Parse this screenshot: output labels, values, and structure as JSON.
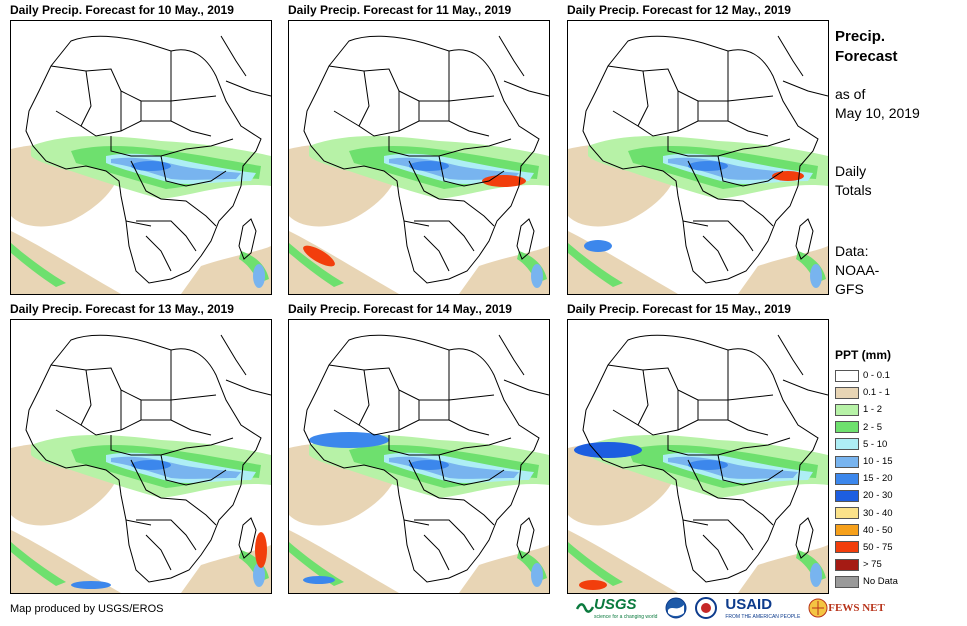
{
  "panels": [
    {
      "title": "Daily Precip. Forecast for 10 May., 2019"
    },
    {
      "title": "Daily Precip. Forecast for 11 May., 2019"
    },
    {
      "title": "Daily Precip. Forecast for 12 May., 2019"
    },
    {
      "title": "Daily Precip. Forecast for 13 May., 2019"
    },
    {
      "title": "Daily Precip. Forecast for 14 May., 2019"
    },
    {
      "title": "Daily Precip. Forecast for 15 May., 2019"
    }
  ],
  "sidebar": {
    "title_line1": "Precip.",
    "title_line2": "Forecast",
    "asof_line1": "as of",
    "asof_line2": "May 10, 2019",
    "totals_line1": "Daily",
    "totals_line2": "Totals",
    "data_line1": "Data:",
    "data_line2": "NOAA-",
    "data_line3": "GFS"
  },
  "legend": {
    "title": "PPT (mm)",
    "items": [
      {
        "label": "0 - 0.1",
        "color": "#ffffff"
      },
      {
        "label": "0.1 - 1",
        "color": "#e8d5b5"
      },
      {
        "label": "1 - 2",
        "color": "#b7f2a7"
      },
      {
        "label": "2 - 5",
        "color": "#6ee06e"
      },
      {
        "label": "5 - 10",
        "color": "#aeeef5"
      },
      {
        "label": "10 - 15",
        "color": "#78b4ef"
      },
      {
        "label": "15 - 20",
        "color": "#3c87ec"
      },
      {
        "label": "20 - 30",
        "color": "#1d5ee0"
      },
      {
        "label": "30 - 40",
        "color": "#fbe28a"
      },
      {
        "label": "40 - 50",
        "color": "#f6a01a"
      },
      {
        "label": "50 - 75",
        "color": "#f23e0c"
      },
      {
        "label": "> 75",
        "color": "#a51b14"
      },
      {
        "label": "No Data",
        "color": "#9a9a9a"
      }
    ]
  },
  "footer": {
    "credit": "Map produced by USGS/EROS",
    "usgs": "USGS",
    "usgs_tagline": "science for a changing world",
    "usaid": "USAID",
    "usaid_tagline": "FROM THE AMERICAN PEOPLE",
    "fews": "FEWS NET"
  }
}
